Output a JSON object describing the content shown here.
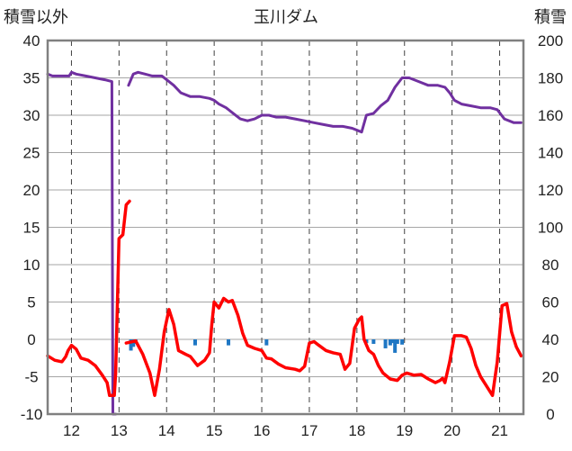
{
  "chart_data": {
    "type": "line",
    "title": "玉川ダム",
    "ylabel_left": "積雪以外",
    "ylabel_right": "積雪",
    "xlim": [
      11.5,
      21.5
    ],
    "ylim_left": [
      -10,
      40
    ],
    "ylim_right": [
      0,
      200
    ],
    "grid": true,
    "x_ticks": [
      12,
      13,
      14,
      15,
      16,
      17,
      18,
      19,
      20,
      21
    ],
    "y_ticks_left": [
      -10,
      -5,
      0,
      5,
      10,
      15,
      20,
      25,
      30,
      35,
      40
    ],
    "y_ticks_right": [
      0,
      20,
      40,
      60,
      80,
      100,
      120,
      140,
      160,
      180,
      200
    ],
    "series": [
      {
        "name": "",
        "axis": "right",
        "color": "#7030a0",
        "segments": [
          [
            [
              11.5,
              182
            ],
            [
              11.6,
              181
            ],
            [
              11.8,
              181
            ],
            [
              11.95,
              181
            ],
            [
              12.0,
              183
            ],
            [
              12.1,
              182
            ],
            [
              12.3,
              181
            ],
            [
              12.5,
              180
            ],
            [
              12.7,
              179
            ],
            [
              12.85,
              178
            ],
            [
              12.87,
              0
            ],
            [
              12.93,
              0
            ]
          ],
          [
            [
              13.2,
              176
            ],
            [
              13.3,
              182
            ],
            [
              13.4,
              183
            ],
            [
              13.55,
              182
            ],
            [
              13.7,
              181
            ],
            [
              13.9,
              181
            ],
            [
              14.0,
              179
            ],
            [
              14.15,
              176
            ],
            [
              14.3,
              172
            ],
            [
              14.5,
              170
            ],
            [
              14.7,
              170
            ],
            [
              14.9,
              169
            ],
            [
              15.0,
              168
            ],
            [
              15.1,
              166
            ],
            [
              15.25,
              164
            ],
            [
              15.4,
              161
            ],
            [
              15.55,
              158
            ],
            [
              15.7,
              157
            ],
            [
              15.85,
              158
            ],
            [
              16.0,
              160
            ],
            [
              16.15,
              160
            ],
            [
              16.3,
              159
            ],
            [
              16.5,
              159
            ],
            [
              16.7,
              158
            ],
            [
              16.9,
              157
            ],
            [
              17.1,
              156
            ],
            [
              17.3,
              155
            ],
            [
              17.5,
              154
            ],
            [
              17.7,
              154
            ],
            [
              17.9,
              153
            ],
            [
              18.1,
              151
            ],
            [
              18.2,
              160
            ],
            [
              18.35,
              161
            ],
            [
              18.5,
              165
            ],
            [
              18.65,
              168
            ],
            [
              18.8,
              175
            ],
            [
              18.95,
              180
            ],
            [
              19.1,
              180
            ],
            [
              19.3,
              178
            ],
            [
              19.5,
              176
            ],
            [
              19.7,
              176
            ],
            [
              19.85,
              175
            ],
            [
              19.95,
              172
            ],
            [
              20.05,
              168
            ],
            [
              20.2,
              166
            ],
            [
              20.4,
              165
            ],
            [
              20.6,
              164
            ],
            [
              20.8,
              164
            ],
            [
              20.95,
              163
            ],
            [
              21.1,
              158
            ],
            [
              21.3,
              156
            ],
            [
              21.45,
              156
            ]
          ]
        ]
      },
      {
        "name": "",
        "axis": "left",
        "color": "#ff0000",
        "segments": [
          [
            [
              11.5,
              -2.2
            ],
            [
              11.65,
              -2.8
            ],
            [
              11.8,
              -3
            ],
            [
              11.88,
              -2.3
            ],
            [
              11.93,
              -1.5
            ],
            [
              12.0,
              -0.8
            ],
            [
              12.1,
              -1.3
            ],
            [
              12.2,
              -2.5
            ],
            [
              12.35,
              -2.8
            ],
            [
              12.5,
              -3.5
            ],
            [
              12.65,
              -4.8
            ],
            [
              12.75,
              -5.8
            ],
            [
              12.8,
              -7.5
            ],
            [
              12.9,
              -7.5
            ],
            [
              12.93,
              -4.5
            ],
            [
              13.0,
              13.5
            ],
            [
              13.08,
              14
            ],
            [
              13.15,
              18
            ],
            [
              13.22,
              18.5
            ]
          ],
          [
            [
              13.15,
              -0.5
            ],
            [
              13.35,
              -0.2
            ],
            [
              13.5,
              -2
            ],
            [
              13.65,
              -4.5
            ],
            [
              13.75,
              -7.5
            ],
            [
              13.85,
              -4
            ],
            [
              13.95,
              1
            ],
            [
              14.05,
              4
            ],
            [
              14.15,
              2
            ],
            [
              14.25,
              -1.5
            ],
            [
              14.4,
              -2
            ],
            [
              14.5,
              -2.3
            ],
            [
              14.65,
              -3.5
            ],
            [
              14.8,
              -2.8
            ],
            [
              14.9,
              -1.8
            ],
            [
              14.95,
              2
            ],
            [
              15.0,
              5
            ],
            [
              15.1,
              4.2
            ],
            [
              15.2,
              5.5
            ],
            [
              15.3,
              5
            ],
            [
              15.38,
              5.2
            ],
            [
              15.5,
              3.2
            ],
            [
              15.6,
              0.8
            ],
            [
              15.7,
              -0.8
            ],
            [
              15.85,
              -1.2
            ],
            [
              16.0,
              -1.5
            ],
            [
              16.1,
              -2.5
            ],
            [
              16.2,
              -2.6
            ],
            [
              16.35,
              -3.3
            ],
            [
              16.5,
              -3.8
            ],
            [
              16.7,
              -4
            ],
            [
              16.8,
              -4.2
            ],
            [
              16.9,
              -3.6
            ],
            [
              17.0,
              -0.5
            ],
            [
              17.1,
              -0.3
            ],
            [
              17.2,
              -0.8
            ],
            [
              17.35,
              -1.5
            ],
            [
              17.5,
              -1.8
            ],
            [
              17.65,
              -2
            ],
            [
              17.75,
              -4
            ],
            [
              17.85,
              -3.2
            ],
            [
              17.95,
              1.5
            ],
            [
              18.05,
              2.7
            ],
            [
              18.1,
              3
            ],
            [
              18.15,
              0
            ],
            [
              18.25,
              -1.5
            ],
            [
              18.35,
              -2
            ],
            [
              18.45,
              -3.5
            ],
            [
              18.55,
              -4.5
            ],
            [
              18.7,
              -5.3
            ],
            [
              18.85,
              -5.5
            ],
            [
              18.95,
              -4.8
            ],
            [
              19.05,
              -4.5
            ],
            [
              19.2,
              -4.8
            ],
            [
              19.35,
              -4.7
            ],
            [
              19.5,
              -5.3
            ],
            [
              19.65,
              -5.8
            ],
            [
              19.75,
              -5.5
            ],
            [
              19.8,
              -5.2
            ],
            [
              19.85,
              -5.8
            ],
            [
              19.95,
              -3
            ],
            [
              20.05,
              0.5
            ],
            [
              20.2,
              0.5
            ],
            [
              20.3,
              0.3
            ],
            [
              20.4,
              -1.2
            ],
            [
              20.5,
              -3.5
            ],
            [
              20.6,
              -5
            ],
            [
              20.7,
              -6
            ],
            [
              20.85,
              -7.5
            ],
            [
              20.95,
              -3
            ],
            [
              21.05,
              4.5
            ],
            [
              21.15,
              4.8
            ],
            [
              21.25,
              1
            ],
            [
              21.35,
              -1
            ],
            [
              21.45,
              -2.2
            ]
          ]
        ]
      }
    ],
    "bars": {
      "axis": "left",
      "color": "#1f77c4",
      "x": [
        13.25,
        13.3,
        13.35,
        14.6,
        15.3,
        16.1,
        18.2,
        18.35,
        18.6,
        18.7,
        18.75,
        18.8,
        18.85,
        18.95
      ],
      "values": [
        -1.5,
        -1.0,
        -0.6,
        -0.8,
        -0.8,
        -0.8,
        -0.5,
        -0.6,
        -1.2,
        -0.8,
        -0.5,
        -1.8,
        -0.6,
        -0.7
      ]
    }
  }
}
